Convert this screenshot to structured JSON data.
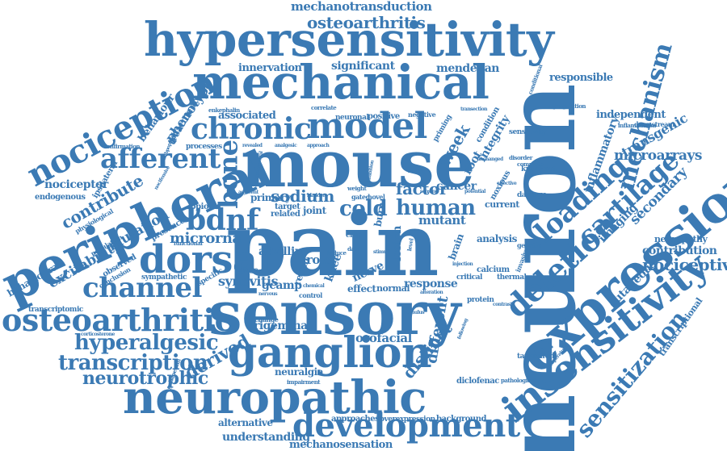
{
  "word_color": "#3b7ab4",
  "background_color": "#ffffff",
  "words": {
    "pain": "pain",
    "neuron": "neuron",
    "mouse": "mouse",
    "sensory": "sensory",
    "hypersensitivity": "hypersensitivity",
    "mechanical": "mechanical",
    "expression": "expression",
    "peripheral": "peripheral",
    "neuropathic": "neuropathic",
    "ganglion": "ganglion",
    "insensitivity": "insensitivity",
    "model": "model",
    "chronic": "chronic",
    "osteoarthritic": "osteoarthritic",
    "nociception": "nociception",
    "dorsal": "dorsal",
    "development": "development",
    "channel": "channel",
    "afferent": "afferent",
    "bdnf": "bdnf",
    "deletion": "deletion",
    "loading": "loading",
    "cartilage": "cartilage",
    "mechanism": "mechanism",
    "sensitization": "sensitization",
    "osteoarthritis": "osteoarthritis",
    "mechanotransduction": "mechanotransduction",
    "transcription": "transcription",
    "hyperalgesic": "hyperalgesic",
    "neurotrophic": "neurotrophic",
    "human": "human",
    "cold": "cold",
    "sodium": "sodium",
    "factor": "factor",
    "microrna": "microrna",
    "bone": "bone",
    "distinct": "distinct",
    "different": "different",
    "derived": "derived",
    "nociceptive": "nociceptive",
    "contribution": "contribution",
    "neuropathy": "neuropathy",
    "cutaneous": "cutaneous",
    "imaging": "imaging",
    "secondary": "secondary",
    "transgenic": "transgenic",
    "independent": "independent",
    "inflammatory": "inflammatory",
    "microarrays": "microarrays",
    "responsible": "responsible",
    "mendelian": "mendelian",
    "significant": "significant",
    "innervation": "innervation",
    "phenotype": "phenotype",
    "behaviour": "behaviour",
    "treatment": "treatment",
    "contribute": "contribute",
    "nociceptor": "nociceptor",
    "excitability": "excitability",
    "mutation": "mutation",
    "behavioural": "behavioural",
    "synovitis": "synovitis",
    "advillin": "advillin",
    "gcamp": "gcamp",
    "orofacial": "orofacial",
    "trigeminal": "trigeminal",
    "neuralgia": "neuralgia",
    "understanding": "understanding",
    "mechanosensation": "mechanosensation",
    "alternative": "alternative",
    "approaches": "approaches",
    "overexpression": "overexpression",
    "background": "background",
    "diclofenac": "diclofenac",
    "tamoxifen": "tamoxifen",
    "analysis": "analysis",
    "calcium": "calcium",
    "response": "response",
    "mutant": "mutant",
    "cancer": "cancer",
    "root": "root",
    "integrity": "integrity",
    "week": "week",
    "associated": "associated",
    "opioids": "opioids",
    "nerve": "nerve",
    "knee": "knee",
    "result": "result",
    "primary": "primary",
    "lesion": "lesion",
    "brain": "brain",
    "burn": "burn",
    "effect": "effect",
    "normal": "normal",
    "protein": "protein",
    "transcriptomic": "transcriptomic",
    "transcriptional": "transcriptional",
    "endogenous": "endogenous",
    "sympathetic": "sympathetic",
    "population": "population",
    "processes": "processes",
    "condition": "condition",
    "priming": "priming",
    "target": "target",
    "related": "related",
    "joint": "joint",
    "role": "role",
    "sensitivity": "sensitivity",
    "knockout": "knockout",
    "damage": "damage",
    "current": "current",
    "noxious": "noxious",
    "invasive": "invasive",
    "thermal": "thermal",
    "critical": "critical",
    "downstream": "downstream",
    "inflammation": "inflammation",
    "upregulation": "upregulation",
    "conditional": "conditional",
    "genetic": "genetic",
    "ipsilateral": "ipsilateral",
    "physiological": "physiological",
    "observed": "observed",
    "conclusion": "conclusion",
    "presence": "presence",
    "confirmation": "confirmation",
    "enkephalin": "enkephalin",
    "correlate": "correlate",
    "neuronal": "neuronal",
    "positive": "positive",
    "negative": "negative",
    "disorder": "disorder",
    "complete": "complete",
    "gated": "gated",
    "novel": "novel",
    "weight": "weight",
    "corticosterone": "corticosterone",
    "gabapentin": "gabapentin",
    "impairment": "impairment",
    "pathological": "pathological",
    "temperature": "temperature",
    "contrast": "contrast",
    "control": "control",
    "change": "change",
    "functional": "functional",
    "specific": "specific",
    "voltage": "voltage",
    "induce": "induce",
    "level": "level",
    "data": "data",
    "transection": "transection",
    "revealed": "revealed",
    "analgesic": "analgesic",
    "inhibition": "inhibition",
    "subpopulation": "subpopulation",
    "nocifensive": "nocifensive",
    "mitochondrial": "mitochondrial",
    "adjacent": "adjacent",
    "approach": "approach",
    "sensing": "sensing",
    "unchanged": "unchanged",
    "bladder": "bladder",
    "lacking": "lacking",
    "effective": "effective",
    "potential": "potential",
    "injection": "injection",
    "stimulus": "stimulus",
    "following": "following",
    "nervous": "nervous",
    "cibp": "cibp",
    "stimuli": "stimuli",
    "chemical": "chemical",
    "alteration": "alteration"
  }
}
